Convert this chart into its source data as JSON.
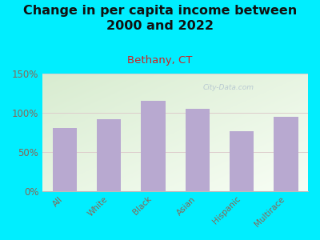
{
  "title": "Change in per capita income between\n2000 and 2022",
  "subtitle": "Bethany, CT",
  "categories": [
    "All",
    "White",
    "Black",
    "Asian",
    "Hispanic",
    "Multirace"
  ],
  "values": [
    80,
    92,
    115,
    105,
    76,
    95
  ],
  "bar_color": "#b8a9d0",
  "background_outer": "#00eeff",
  "background_plot_topleft": "#d8ecd0",
  "background_plot_bottomright": "#f4fcf0",
  "title_fontsize": 11.5,
  "subtitle_fontsize": 9.5,
  "subtitle_color": "#cc2222",
  "tick_color": "#886655",
  "ylim": [
    0,
    150
  ],
  "yticks": [
    0,
    50,
    100,
    150
  ],
  "watermark": "City-Data.com",
  "watermark_color": "#aabbcc"
}
